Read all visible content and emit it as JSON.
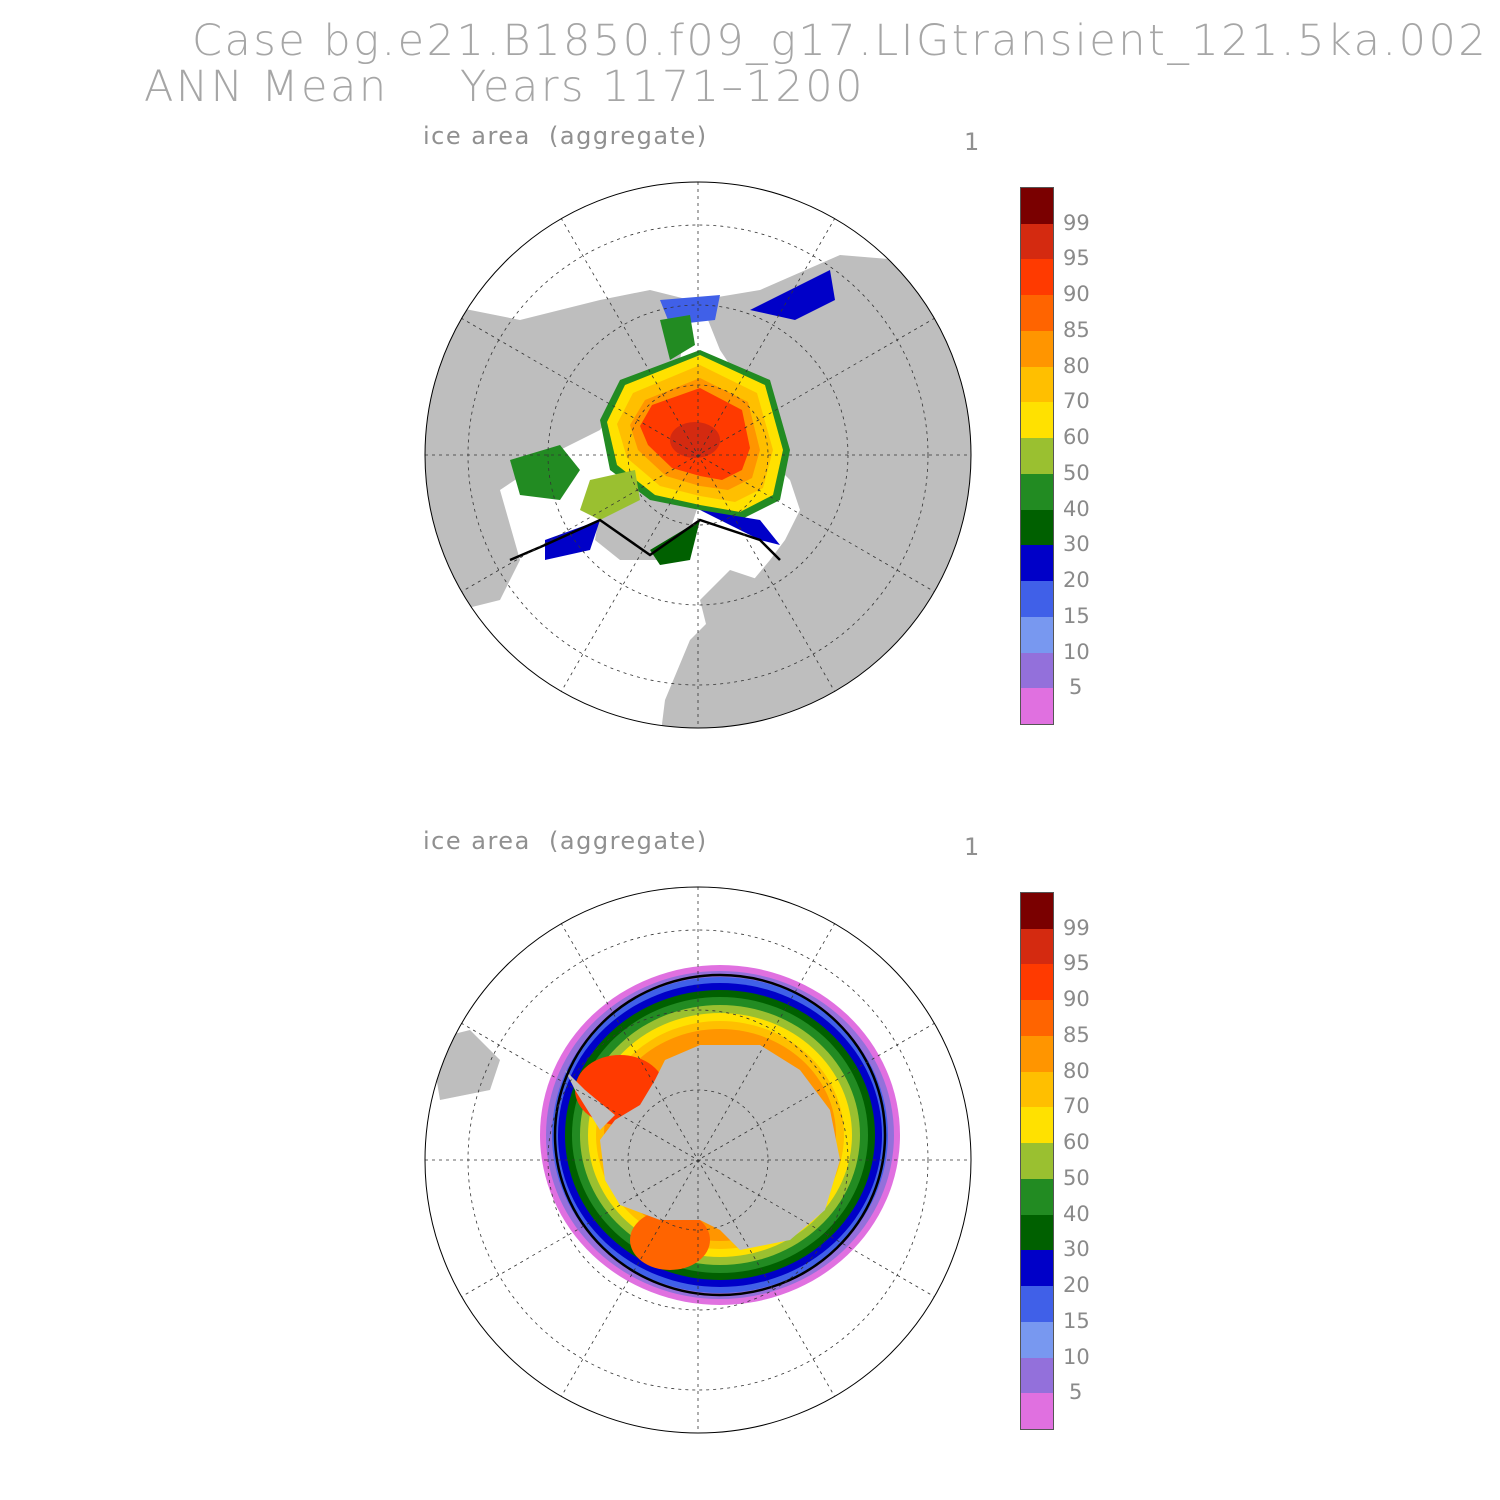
{
  "header": {
    "line1": "Case bg.e21.B1850.f09_g17.LIGtransient_121.5ka.002",
    "line2_season": "ANN Mean",
    "line2_years": "Years 1171–1200"
  },
  "panels": [
    {
      "id": "nh",
      "title": "ice area  (aggregate)",
      "number": "1"
    },
    {
      "id": "sh",
      "title": "ice area  (aggregate)",
      "number": "1"
    }
  ],
  "colorbar": {
    "labels": [
      "99",
      "95",
      "90",
      "85",
      "80",
      "70",
      "60",
      "50",
      "40",
      "30",
      "20",
      "15",
      "10",
      "5"
    ],
    "colors": [
      "#7a0000",
      "#d42a10",
      "#ff3a00",
      "#ff6400",
      "#ff9500",
      "#ffbf00",
      "#ffe100",
      "#9ac030",
      "#228b22",
      "#006000",
      "#0000c8",
      "#4060e8",
      "#7898f0",
      "#9370db",
      "#e070e0"
    ]
  },
  "colors": {
    "land": "#bebebe",
    "ocean": "#ffffff",
    "outline": "#000000"
  }
}
